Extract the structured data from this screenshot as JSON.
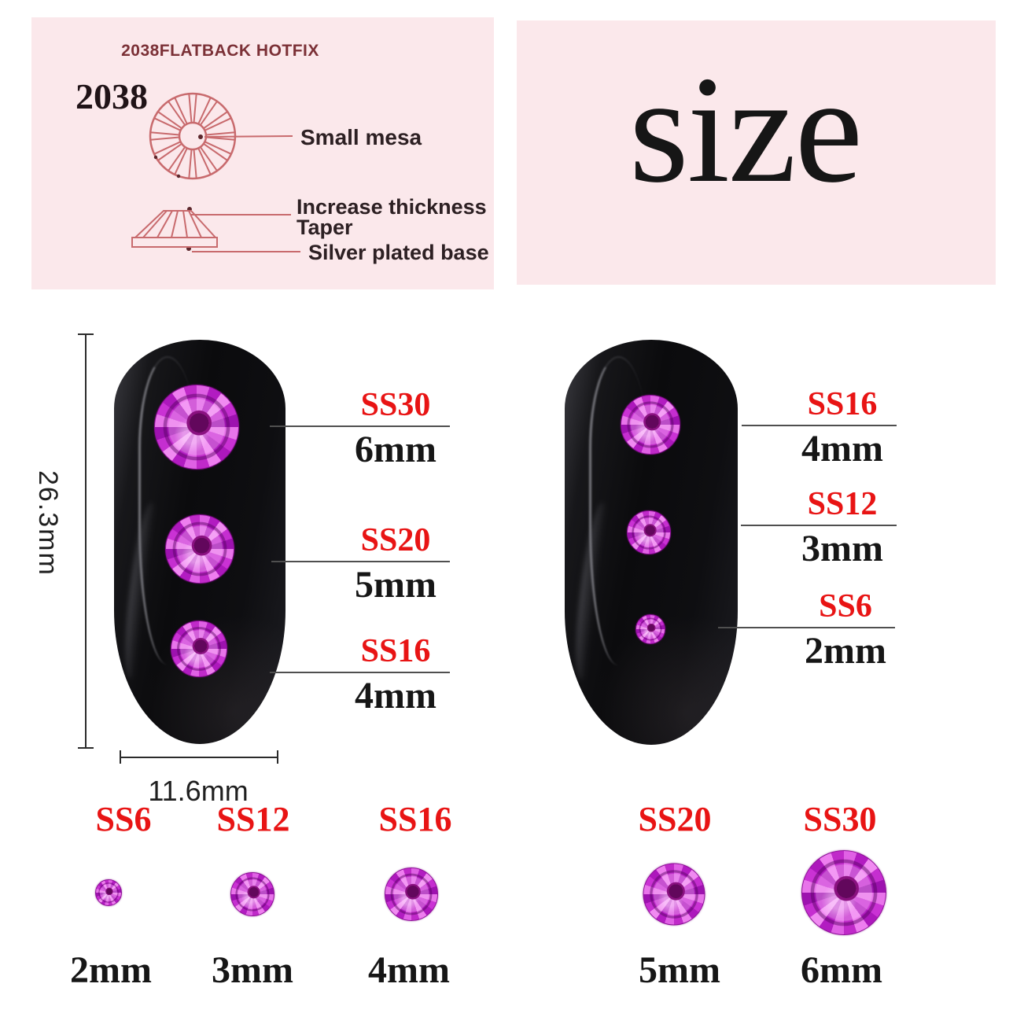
{
  "spec_panel": {
    "header": "2038FLATBACK HOTFIX",
    "model": "2038",
    "labels": {
      "small_mesa": "Small mesa",
      "increase_thickness": "Increase thickness",
      "taper": "Taper",
      "silver_plated_base": "Silver plated base"
    }
  },
  "size_panel": {
    "title": "size"
  },
  "measurements": {
    "nail_height": "26.3mm",
    "nail_width": "11.6mm"
  },
  "left_nail": {
    "callouts": [
      {
        "ss": "SS30",
        "mm": "6mm"
      },
      {
        "ss": "SS20",
        "mm": "5mm"
      },
      {
        "ss": "SS16",
        "mm": "4mm"
      }
    ]
  },
  "right_nail": {
    "callouts": [
      {
        "ss": "SS16",
        "mm": "4mm"
      },
      {
        "ss": "SS12",
        "mm": "3mm"
      },
      {
        "ss": "SS6",
        "mm": "2mm"
      }
    ]
  },
  "size_row": [
    {
      "ss": "SS6",
      "mm": "2mm"
    },
    {
      "ss": "SS12",
      "mm": "3mm"
    },
    {
      "ss": "SS16",
      "mm": "4mm"
    },
    {
      "ss": "SS20",
      "mm": "5mm"
    },
    {
      "ss": "SS30",
      "mm": "6mm"
    }
  ],
  "colors": {
    "accent_red": "#e81414",
    "gem_magenta": "#cb2dd4",
    "panel_pink": "#fbe8eb",
    "diagram_line": "#c86a6d",
    "nail_black": "#0c0c0e"
  }
}
